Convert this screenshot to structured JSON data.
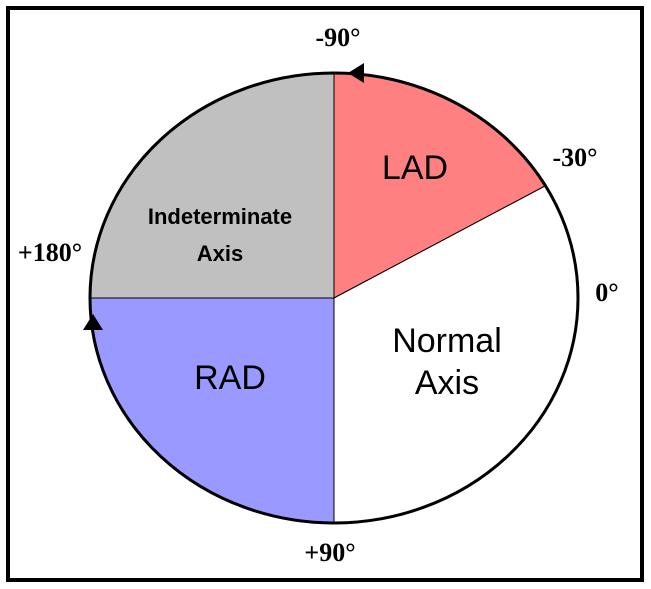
{
  "angles": {
    "top": "-90°",
    "upper_right": "-30°",
    "right": "0°",
    "bottom": "+90°",
    "left": "+180°"
  },
  "regions": [
    {
      "lines": [
        "LAD"
      ]
    },
    {
      "lines": [
        "Normal",
        "Axis"
      ]
    },
    {
      "lines": [
        "RAD"
      ]
    },
    {
      "lines": [
        "Indeterminate",
        "Axis"
      ]
    }
  ]
}
